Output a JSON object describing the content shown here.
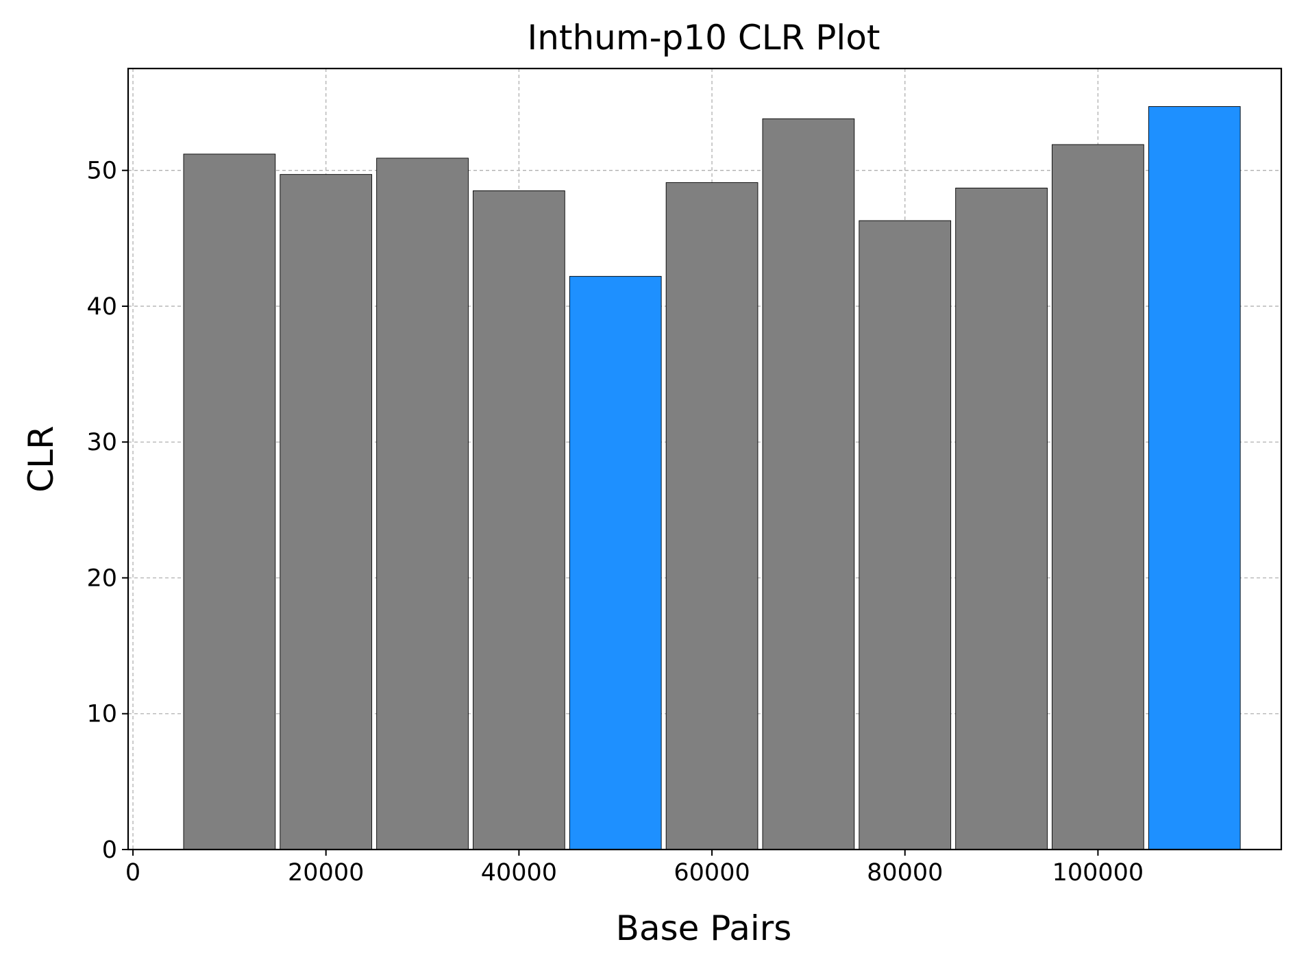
{
  "chart_data": {
    "type": "bar",
    "title": "Inthum-p10 CLR Plot",
    "xlabel": "Base Pairs",
    "ylabel": "CLR",
    "xlim": [
      -500,
      119000
    ],
    "ylim": [
      0,
      57.5
    ],
    "xticks": [
      0,
      20000,
      40000,
      60000,
      80000,
      100000
    ],
    "yticks": [
      0,
      10,
      20,
      30,
      40,
      50
    ],
    "grid": true,
    "bar_width": 9500,
    "bars": [
      {
        "x": 10000,
        "value": 51.2,
        "color": "#808080"
      },
      {
        "x": 20000,
        "value": 49.7,
        "color": "#808080"
      },
      {
        "x": 30000,
        "value": 50.9,
        "color": "#808080"
      },
      {
        "x": 40000,
        "value": 48.5,
        "color": "#808080"
      },
      {
        "x": 50000,
        "value": 42.2,
        "color": "#1e90ff"
      },
      {
        "x": 60000,
        "value": 49.1,
        "color": "#808080"
      },
      {
        "x": 70000,
        "value": 53.8,
        "color": "#808080"
      },
      {
        "x": 80000,
        "value": 46.3,
        "color": "#808080"
      },
      {
        "x": 90000,
        "value": 48.7,
        "color": "#808080"
      },
      {
        "x": 100000,
        "value": 51.9,
        "color": "#808080"
      },
      {
        "x": 110000,
        "value": 54.7,
        "color": "#1e90ff"
      }
    ]
  }
}
